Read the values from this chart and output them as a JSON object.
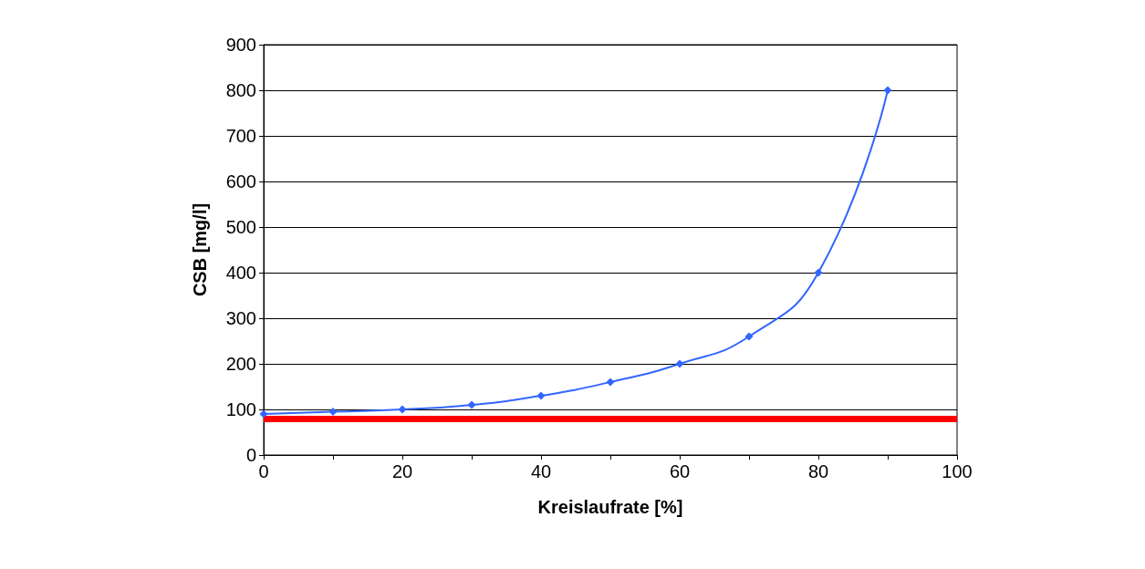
{
  "chart_data": {
    "type": "line",
    "xlabel": "Kreislaufrate [%]",
    "ylabel": "CSB [mg/l]",
    "x": [
      0,
      10,
      20,
      30,
      40,
      50,
      60,
      70,
      80,
      90
    ],
    "series": [
      {
        "color": "#3366ff",
        "values": [
          90,
          95,
          100,
          110,
          130,
          160,
          200,
          260,
          400,
          800
        ]
      }
    ],
    "xlim": [
      0,
      100
    ],
    "xticks": [
      0,
      {
        "value": 10,
        "label": null
      },
      20,
      {
        "value": 30,
        "label": null
      },
      40,
      {
        "value": 50,
        "label": null
      },
      60,
      {
        "value": 70,
        "label": null
      },
      80,
      {
        "value": 90,
        "label": null
      },
      100
    ],
    "ylim": [
      0,
      900
    ],
    "yticks": [
      0,
      100,
      200,
      300,
      400,
      500,
      600,
      700,
      800,
      900
    ],
    "ref_lines": [
      {
        "axis": "y",
        "value": 80,
        "color": "#ff0000",
        "line_style": "solid"
      }
    ],
    "grid": "y",
    "marker": "diamond",
    "line_style": "solid"
  }
}
